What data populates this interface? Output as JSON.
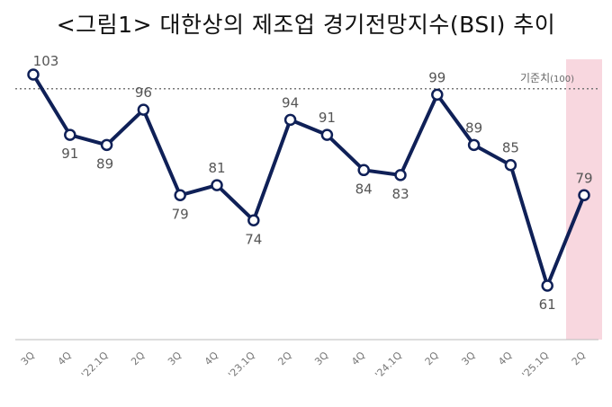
{
  "chart_data": {
    "type": "line",
    "title": "<그림1> 대한상의 제조업 경기전망지수(BSI) 추이",
    "categories": [
      "3Q",
      "4Q",
      "'22.1Q",
      "2Q",
      "3Q",
      "4Q",
      "'23.1Q",
      "2Q",
      "3Q",
      "4Q",
      "'24.1Q",
      "2Q",
      "3Q",
      "4Q",
      "'25.1Q",
      "2Q"
    ],
    "series": [
      {
        "values": [
          103,
          91,
          89,
          96,
          79,
          81,
          74,
          94,
          91,
          84,
          83,
          99,
          89,
          85,
          61,
          79
        ]
      }
    ],
    "reference_line": {
      "value": 100,
      "label": "기준치",
      "label_suffix": "(100)"
    },
    "highlight_category": "2Q",
    "ylim": [
      49,
      108
    ],
    "grid": false,
    "colors": {
      "line": "#0f2057",
      "marker_fill": "#ffffff",
      "label": "#555555",
      "highlight_label": "#9b1b30",
      "highlight_band": "#f8d7df",
      "reference": "#777777",
      "axis": "#bbbbbb"
    }
  }
}
